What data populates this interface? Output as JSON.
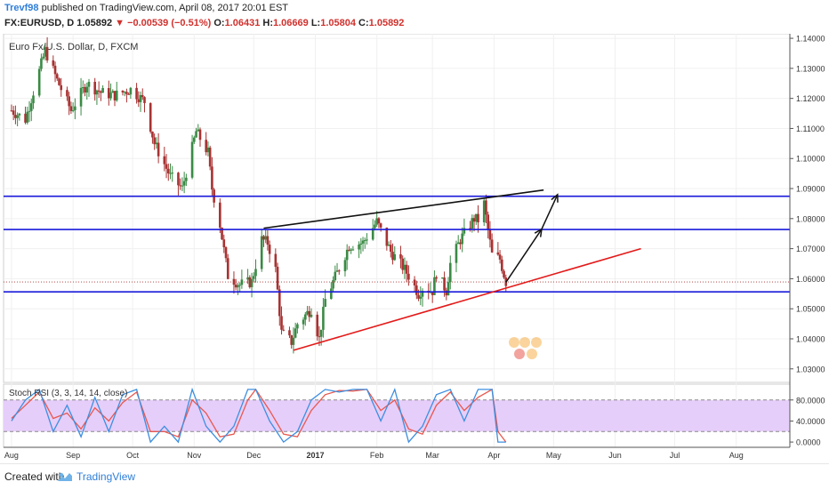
{
  "header": {
    "author": "Trevf98",
    "published_text": "published on TradingView.com, April 08, 2017 20:01 EST",
    "symbol": "FX:EURUSD, D",
    "last": "1.05892",
    "change": "−0.00539 (−0.51%)",
    "o_label": "O:",
    "o_value": "1.06431",
    "h_label": "H:",
    "h_value": "1.06669",
    "l_label": "L:",
    "l_value": "1.05804",
    "c_label": "C:",
    "c_value": "1.05892"
  },
  "footer": {
    "created_with": "Created with",
    "brand": "TradingView"
  },
  "colors": {
    "bull": "#3a8a45",
    "bear": "#a83232",
    "support": "#1a1adb",
    "trendline_upper": "#111111",
    "trendline_lower": "#e31a1a",
    "stoch_k": "#3d8fe0",
    "stoch_d": "#e8584f",
    "stoch_band": "#e6cefa",
    "price_label_bg": "#1a1adb",
    "last_label_bg": "#e8584f"
  },
  "chart_data": {
    "type": "candlestick",
    "title": "Euro Fx/U.S. Dollar, D, FXCM",
    "ylim": [
      1.0255,
      1.1415
    ],
    "y_ticks": [
      "1.14000",
      "1.13000",
      "1.12000",
      "1.11000",
      "1.10000",
      "1.09000",
      "1.08000",
      "1.07000",
      "1.06000",
      "1.05000",
      "1.04000",
      "1.03000"
    ],
    "x_labels": [
      "Aug",
      "Sep",
      "Oct",
      "Nov",
      "Dec",
      "2017",
      "Feb",
      "Mar",
      "Apr",
      "May",
      "Jun",
      "Jul",
      "Aug"
    ],
    "close_anchors": [
      [
        "2016-08-01",
        1.116
      ],
      [
        "2016-08-08",
        1.113
      ],
      [
        "2016-08-18",
        1.136
      ],
      [
        "2016-08-24",
        1.126
      ],
      [
        "2016-08-31",
        1.116
      ],
      [
        "2016-09-08",
        1.125
      ],
      [
        "2016-09-15",
        1.122
      ],
      [
        "2016-09-22",
        1.121
      ],
      [
        "2016-09-30",
        1.123
      ],
      [
        "2016-10-07",
        1.119
      ],
      [
        "2016-10-12",
        1.105
      ],
      [
        "2016-10-20",
        1.094
      ],
      [
        "2016-10-26",
        1.09
      ],
      [
        "2016-11-02",
        1.109
      ],
      [
        "2016-11-08",
        1.102
      ],
      [
        "2016-11-10",
        1.09
      ],
      [
        "2016-11-14",
        1.078
      ],
      [
        "2016-11-18",
        1.061
      ],
      [
        "2016-11-24",
        1.058
      ],
      [
        "2016-11-30",
        1.059
      ],
      [
        "2016-12-05",
        1.073
      ],
      [
        "2016-12-08",
        1.072
      ],
      [
        "2016-12-12",
        1.063
      ],
      [
        "2016-12-15",
        1.042
      ],
      [
        "2016-12-20",
        1.039
      ],
      [
        "2016-12-23",
        1.045
      ],
      [
        "2016-12-30",
        1.05
      ],
      [
        "2017-01-03",
        1.04
      ],
      [
        "2017-01-06",
        1.053
      ],
      [
        "2017-01-12",
        1.062
      ],
      [
        "2017-01-18",
        1.071
      ],
      [
        "2017-01-25",
        1.072
      ],
      [
        "2017-02-01",
        1.079
      ],
      [
        "2017-02-03",
        1.076
      ],
      [
        "2017-02-08",
        1.069
      ],
      [
        "2017-02-14",
        1.064
      ],
      [
        "2017-02-17",
        1.061
      ],
      [
        "2017-02-22",
        1.055
      ],
      [
        "2017-02-24",
        1.057
      ],
      [
        "2017-03-01",
        1.056
      ],
      [
        "2017-03-03",
        1.062
      ],
      [
        "2017-03-08",
        1.056
      ],
      [
        "2017-03-10",
        1.065
      ],
      [
        "2017-03-15",
        1.073
      ],
      [
        "2017-03-22",
        1.08
      ],
      [
        "2017-03-24",
        1.0795
      ],
      [
        "2017-03-27",
        1.085
      ],
      [
        "2017-03-29",
        1.076
      ],
      [
        "2017-03-31",
        1.068
      ],
      [
        "2017-04-04",
        1.0665
      ],
      [
        "2017-04-07",
        1.0589
      ]
    ],
    "horizontal_levels": [
      {
        "label": "1.08744",
        "value": 1.08744,
        "label_color": "#1a1adb"
      },
      {
        "label": "1.07637",
        "value": 1.07637,
        "label_color": "#1a1adb"
      },
      {
        "label": "1.05563",
        "value": 1.05563,
        "label_color": "#1a1adb"
      }
    ],
    "last_price": {
      "label": "1.05892",
      "value": 1.05892
    },
    "trendlines": [
      {
        "name": "upper",
        "points": [
          [
            "2016-12-06",
            1.0768
          ],
          [
            "2017-04-26",
            1.0895
          ]
        ]
      },
      {
        "name": "lower",
        "points": [
          [
            "2016-12-21",
            1.0362
          ],
          [
            "2017-06-14",
            1.07
          ]
        ]
      }
    ],
    "projection_arrows": [
      [
        [
          "2017-04-07",
          1.0588
        ],
        [
          "2017-04-25",
          1.0765
        ]
      ],
      [
        [
          "2017-04-25",
          1.0765
        ],
        [
          "2017-05-03",
          1.088
        ]
      ]
    ],
    "stochastic": {
      "title": "Stoch RSI (3, 3, 14, 14, close)",
      "ylim": [
        -10,
        110
      ],
      "y_ticks": [
        "80.0000",
        "40.0000",
        "0.0000"
      ],
      "band": [
        20,
        80
      ],
      "k_anchors": [
        [
          "2016-08-01",
          40
        ],
        [
          "2016-08-08",
          80
        ],
        [
          "2016-08-15",
          100
        ],
        [
          "2016-08-22",
          20
        ],
        [
          "2016-08-29",
          70
        ],
        [
          "2016-09-05",
          10
        ],
        [
          "2016-09-12",
          85
        ],
        [
          "2016-09-19",
          20
        ],
        [
          "2016-09-26",
          90
        ],
        [
          "2016-10-03",
          100
        ],
        [
          "2016-10-10",
          0
        ],
        [
          "2016-10-17",
          30
        ],
        [
          "2016-10-24",
          0
        ],
        [
          "2016-10-31",
          100
        ],
        [
          "2016-11-07",
          30
        ],
        [
          "2016-11-14",
          0
        ],
        [
          "2016-11-21",
          30
        ],
        [
          "2016-11-28",
          100
        ],
        [
          "2016-12-02",
          100
        ],
        [
          "2016-12-09",
          40
        ],
        [
          "2016-12-16",
          0
        ],
        [
          "2016-12-23",
          20
        ],
        [
          "2016-12-30",
          80
        ],
        [
          "2017-01-06",
          100
        ],
        [
          "2017-01-13",
          95
        ],
        [
          "2017-01-20",
          100
        ],
        [
          "2017-01-27",
          100
        ],
        [
          "2017-02-03",
          40
        ],
        [
          "2017-02-10",
          100
        ],
        [
          "2017-02-17",
          0
        ],
        [
          "2017-02-24",
          30
        ],
        [
          "2017-03-03",
          90
        ],
        [
          "2017-03-10",
          100
        ],
        [
          "2017-03-17",
          40
        ],
        [
          "2017-03-24",
          100
        ],
        [
          "2017-03-31",
          100
        ],
        [
          "2017-04-03",
          0
        ],
        [
          "2017-04-07",
          0
        ]
      ],
      "d_anchors": [
        [
          "2016-08-01",
          45
        ],
        [
          "2016-08-08",
          70
        ],
        [
          "2016-08-15",
          95
        ],
        [
          "2016-08-22",
          45
        ],
        [
          "2016-08-29",
          55
        ],
        [
          "2016-09-05",
          25
        ],
        [
          "2016-09-12",
          65
        ],
        [
          "2016-09-19",
          40
        ],
        [
          "2016-09-26",
          75
        ],
        [
          "2016-10-03",
          95
        ],
        [
          "2016-10-10",
          20
        ],
        [
          "2016-10-17",
          20
        ],
        [
          "2016-10-24",
          10
        ],
        [
          "2016-10-31",
          80
        ],
        [
          "2016-11-07",
          55
        ],
        [
          "2016-11-14",
          10
        ],
        [
          "2016-11-21",
          15
        ],
        [
          "2016-11-28",
          80
        ],
        [
          "2016-12-02",
          100
        ],
        [
          "2016-12-09",
          60
        ],
        [
          "2016-12-16",
          15
        ],
        [
          "2016-12-23",
          10
        ],
        [
          "2016-12-30",
          60
        ],
        [
          "2017-01-06",
          90
        ],
        [
          "2017-01-13",
          98
        ],
        [
          "2017-01-20",
          97
        ],
        [
          "2017-01-27",
          100
        ],
        [
          "2017-02-03",
          60
        ],
        [
          "2017-02-10",
          80
        ],
        [
          "2017-02-17",
          25
        ],
        [
          "2017-02-24",
          15
        ],
        [
          "2017-03-03",
          70
        ],
        [
          "2017-03-10",
          95
        ],
        [
          "2017-03-17",
          60
        ],
        [
          "2017-03-24",
          85
        ],
        [
          "2017-03-31",
          100
        ],
        [
          "2017-04-03",
          20
        ],
        [
          "2017-04-07",
          0
        ]
      ]
    }
  }
}
